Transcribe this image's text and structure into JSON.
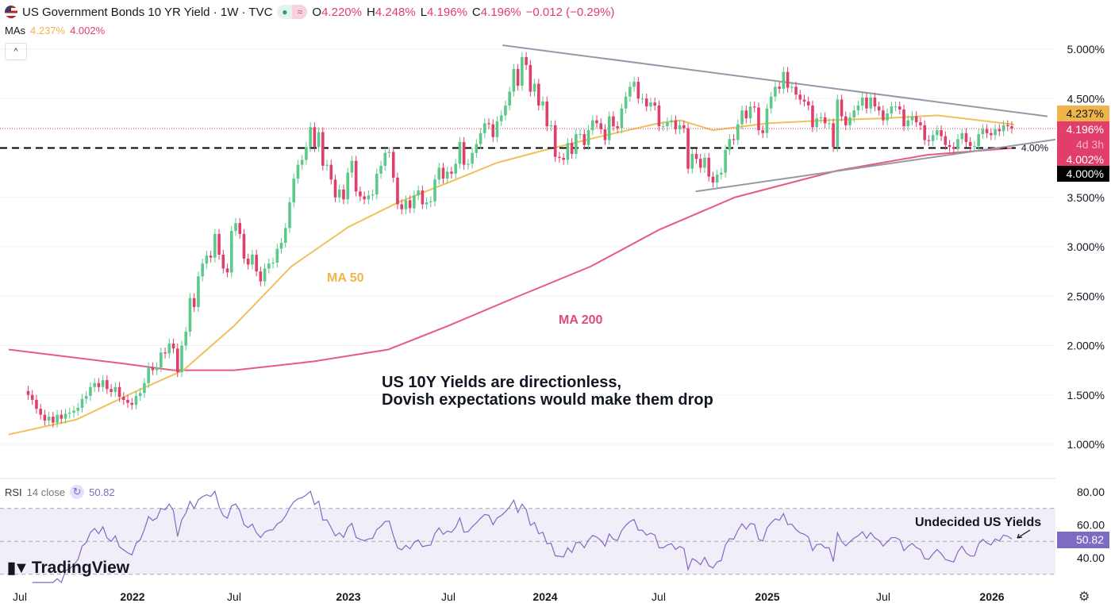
{
  "header": {
    "title": "US Government Bonds 10 YR Yield · 1W · TVC",
    "o_label": "O",
    "o": "4.220%",
    "h_label": "H",
    "h": "4.248%",
    "l_label": "L",
    "l": "4.196%",
    "c_label": "C",
    "c": "4.196%",
    "change": "−0.012 (−0.29%)",
    "mas_label": "MAs",
    "ma50": "4.237%",
    "ma200": "4.002%",
    "collapse": "^"
  },
  "rsi": {
    "label": "RSI",
    "params": "14 close",
    "value": "50.82"
  },
  "logo": "TradingView",
  "annotations": {
    "ma50": "MA 50",
    "ma200": "MA 200",
    "main1": "US 10Y Yields are directionless,",
    "main2": "Dovish expectations would make them drop",
    "rsi_note": "Undecided US Yields",
    "level": "4.00%"
  },
  "colors": {
    "up": "#5cc98a",
    "down": "#e23e6b",
    "ma50": "#f0c05a",
    "ma200": "#e85a83",
    "rsi": "#7e6bc4",
    "trend": "#9598a8"
  },
  "chart_data": {
    "type": "candlestick",
    "price_axis": [
      "5.000%",
      "4.500%",
      "4.000%",
      "3.500%",
      "3.000%",
      "2.500%",
      "2.000%",
      "1.500%",
      "1.000%"
    ],
    "price_ticks": [
      5,
      4.5,
      4,
      3.5,
      3,
      2.5,
      2,
      1.5,
      1
    ],
    "time_axis": [
      {
        "label": "Jul",
        "date": 2021.5
      },
      {
        "label": "2022",
        "date": 2022,
        "bold": true
      },
      {
        "label": "Jul",
        "date": 2022.5
      },
      {
        "label": "2023",
        "date": 2023,
        "bold": true
      },
      {
        "label": "Jul",
        "date": 2023.5
      },
      {
        "label": "2024",
        "date": 2024,
        "bold": true
      },
      {
        "label": "Jul",
        "date": 2024.5
      },
      {
        "label": "2025",
        "date": 2025,
        "bold": true
      },
      {
        "label": "Jul",
        "date": 2025.5
      },
      {
        "label": "2026",
        "date": 2026,
        "bold": true
      }
    ],
    "badges": {
      "ma50": "4.237%",
      "price": "4.196%",
      "countdown": "4d 3h",
      "ma200": "4.002%",
      "level": "4.000%",
      "rsi": "50.82"
    },
    "rsi_axis": [
      "80.00",
      "60.00",
      "40.00"
    ],
    "rsi_levels": {
      "upper": 70,
      "middle": 50,
      "lower": 30
    },
    "weekly_closes": [
      1.5,
      1.45,
      1.36,
      1.3,
      1.24,
      1.28,
      1.22,
      1.3,
      1.26,
      1.31,
      1.32,
      1.34,
      1.37,
      1.46,
      1.49,
      1.58,
      1.62,
      1.58,
      1.65,
      1.56,
      1.53,
      1.58,
      1.48,
      1.45,
      1.42,
      1.4,
      1.49,
      1.52,
      1.62,
      1.78,
      1.75,
      1.78,
      1.93,
      1.92,
      2.02,
      1.97,
      1.73,
      2.0,
      2.14,
      2.48,
      2.39,
      2.7,
      2.83,
      2.91,
      2.89,
      3.13,
      2.92,
      2.78,
      2.74,
      3.16,
      3.24,
      3.13,
      2.88,
      2.82,
      2.92,
      2.75,
      2.65,
      2.78,
      2.83,
      2.84,
      2.98,
      3.04,
      3.19,
      3.45,
      3.69,
      3.83,
      3.88,
      4.01,
      4.21,
      4.01,
      4.16,
      3.82,
      3.83,
      3.68,
      3.5,
      3.58,
      3.48,
      3.75,
      3.87,
      3.56,
      3.51,
      3.48,
      3.52,
      3.53,
      3.74,
      3.82,
      3.95,
      3.96,
      3.7,
      3.43,
      3.38,
      3.47,
      3.39,
      3.52,
      3.57,
      3.43,
      3.45,
      3.46,
      3.68,
      3.8,
      3.69,
      3.76,
      3.74,
      3.84,
      4.06,
      3.83,
      3.84,
      3.95,
      4.04,
      4.15,
      4.25,
      4.24,
      4.11,
      4.27,
      4.33,
      4.43,
      4.57,
      4.8,
      4.63,
      4.92,
      4.84,
      4.57,
      4.65,
      4.43,
      4.47,
      4.22,
      4.23,
      3.91,
      3.9,
      3.88,
      4.05,
      3.94,
      4.14,
      4.14,
      4.03,
      4.18,
      4.28,
      4.25,
      4.19,
      4.08,
      4.32,
      4.22,
      4.2,
      4.4,
      4.52,
      4.62,
      4.67,
      4.5,
      4.5,
      4.42,
      4.46,
      4.43,
      4.22,
      4.22,
      4.26,
      4.28,
      4.19,
      4.23,
      4.2,
      3.79,
      3.94,
      3.89,
      3.8,
      3.9,
      3.71,
      3.65,
      3.73,
      3.75,
      3.98,
      4.09,
      4.08,
      4.24,
      4.38,
      4.3,
      4.42,
      4.41,
      4.18,
      4.15,
      4.4,
      4.52,
      4.62,
      4.6,
      4.77,
      4.61,
      4.62,
      4.54,
      4.49,
      4.47,
      4.43,
      4.21,
      4.3,
      4.31,
      4.25,
      4.25,
      4.01,
      4.49,
      4.32,
      4.23,
      4.31,
      4.38,
      4.43,
      4.51,
      4.4,
      4.51,
      4.42,
      4.38,
      4.28,
      4.35,
      4.42,
      4.42,
      4.39,
      4.22,
      4.28,
      4.32,
      4.26,
      4.23,
      4.08,
      4.07,
      4.13,
      4.18,
      4.12,
      4.03,
      4.01,
      3.99,
      4.09,
      4.15,
      4.06,
      4.02,
      4.02,
      4.14,
      4.19,
      4.15,
      4.13,
      4.19,
      4.17,
      4.23,
      4.22,
      4.196
    ],
    "ma50": [
      [
        2021.45,
        1.1
      ],
      [
        2021.75,
        1.25
      ],
      [
        2022.0,
        1.52
      ],
      [
        2022.25,
        1.75
      ],
      [
        2022.5,
        2.2
      ],
      [
        2022.75,
        2.8
      ],
      [
        2023.0,
        3.2
      ],
      [
        2023.25,
        3.45
      ],
      [
        2023.5,
        3.65
      ],
      [
        2023.75,
        3.85
      ],
      [
        2024.0,
        3.98
      ],
      [
        2024.25,
        4.12
      ],
      [
        2024.5,
        4.25
      ],
      [
        2024.6,
        4.28
      ],
      [
        2024.75,
        4.18
      ],
      [
        2025.0,
        4.25
      ],
      [
        2025.25,
        4.28
      ],
      [
        2025.5,
        4.3
      ],
      [
        2025.75,
        4.33
      ],
      [
        2026.1,
        4.237
      ]
    ],
    "ma200": [
      [
        2021.45,
        1.96
      ],
      [
        2021.95,
        1.82
      ],
      [
        2022.2,
        1.75
      ],
      [
        2022.5,
        1.75
      ],
      [
        2022.85,
        1.84
      ],
      [
        2023.2,
        1.96
      ],
      [
        2023.5,
        2.2
      ],
      [
        2023.85,
        2.49
      ],
      [
        2024.2,
        2.8
      ],
      [
        2024.5,
        3.17
      ],
      [
        2024.85,
        3.5
      ],
      [
        2025.3,
        3.77
      ],
      [
        2025.7,
        3.93
      ],
      [
        2026.1,
        4.0
      ]
    ],
    "trendlines": [
      {
        "from": [
          2023.78,
          5.04
        ],
        "to": [
          2026.25,
          4.32
        ]
      },
      {
        "from": [
          2024.67,
          3.56
        ],
        "to": [
          2026.3,
          4.09
        ]
      }
    ],
    "horizontal_level": 4.0
  }
}
